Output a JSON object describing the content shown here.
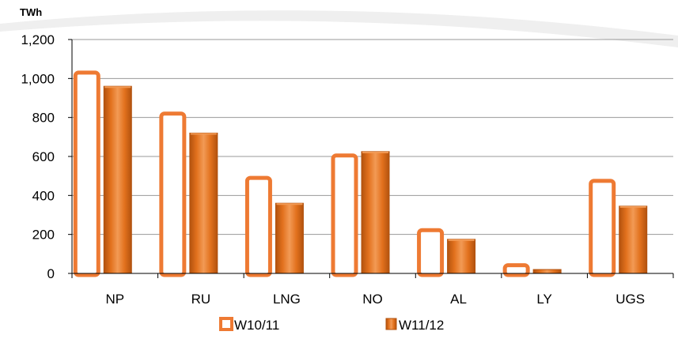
{
  "chart_data": {
    "type": "bar",
    "title": "",
    "ylabel": "TWh",
    "xlabel": "",
    "categories": [
      "NP",
      "RU",
      "LNG",
      "NO",
      "AL",
      "LY",
      "UGS"
    ],
    "series": [
      {
        "name": "W10/11",
        "values": [
          1030,
          820,
          490,
          605,
          222,
          42,
          475
        ],
        "style": "outline"
      },
      {
        "name": "W11/12",
        "values": [
          960,
          720,
          360,
          625,
          175,
          20,
          345
        ],
        "style": "filled"
      }
    ],
    "ylim": [
      0,
      1200
    ],
    "yticks": [
      0,
      200,
      400,
      600,
      800,
      1000,
      1200
    ],
    "ytick_labels": [
      "0",
      "200",
      "400",
      "600",
      "800",
      "1,000",
      "1,200"
    ],
    "grid": true,
    "legend_position": "bottom",
    "colors": {
      "outline_stroke": "#EE7A33",
      "filled_main": "#E2711D",
      "filled_dark": "#B2520E",
      "filled_light": "#F29A55",
      "grid": "#999999",
      "axis": "#000000",
      "text": "#000000",
      "decor_swoosh": "#EEEEEE"
    }
  }
}
